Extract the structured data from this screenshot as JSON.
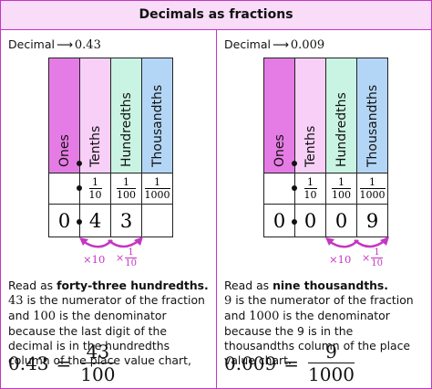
{
  "header": {
    "title": "Decimals as fractions"
  },
  "panels": [
    {
      "decimal_label": "Decimal",
      "arrow": "⟶",
      "decimal": "0.43",
      "columns": [
        "Ones",
        "Tenths",
        "Hundredths",
        "Thousandths"
      ],
      "fractions": [
        {
          "numerator": "1",
          "denominator": "10"
        },
        {
          "numerator": "1",
          "denominator": "100"
        },
        {
          "numerator": "1",
          "denominator": "1000"
        }
      ],
      "digits": [
        "0",
        "4",
        "3"
      ],
      "multiply": {
        "times_ten": "×10",
        "times": "×",
        "numerator": "1",
        "denominator": "10"
      },
      "read_as": "Read as",
      "read_as_bold": "forty-three hundredths.",
      "explanation": {
        "numerator": "43",
        "text1": " is the numerator of the fraction and ",
        "denominator": "100",
        "text2": " is the denominator because the last digit of the decimal is in the hundredths column of the place value chart,"
      },
      "equation": {
        "lhs": "0.43",
        "equals": "=",
        "numerator": "43",
        "denominator": "100"
      }
    },
    {
      "decimal_label": "Decimal",
      "arrow": "⟶",
      "decimal": "0.009",
      "columns": [
        "Ones",
        "Tenths",
        "Hundredths",
        "Thousandths"
      ],
      "fractions": [
        {
          "numerator": "1",
          "denominator": "10"
        },
        {
          "numerator": "1",
          "denominator": "100"
        },
        {
          "numerator": "1",
          "denominator": "1000"
        }
      ],
      "digits": [
        "0",
        "0",
        "0",
        "9"
      ],
      "multiply": {
        "times_ten": "×10",
        "times": "×",
        "numerator": "1",
        "denominator": "10"
      },
      "read_as": "Read as",
      "read_as_bold": "nine thousandths.",
      "explanation": {
        "numerator": "9",
        "text1": " is the numerator of the fraction and ",
        "denominator": "1000",
        "text2": " is the denominator because the 9 is in the thousandths column of the place value chart."
      },
      "equation": {
        "lhs": "0.009",
        "equals": "=",
        "numerator": "9",
        "denominator": "1000"
      }
    }
  ]
}
